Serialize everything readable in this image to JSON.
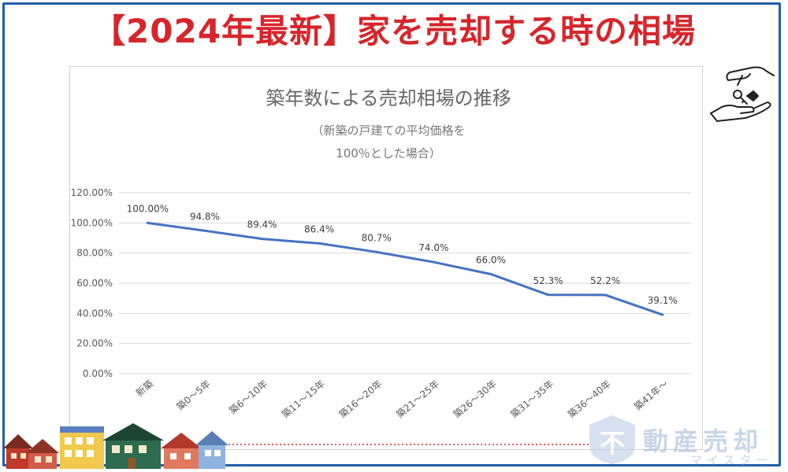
{
  "header": {
    "title": "【2024年最新】家を売却する時の相場"
  },
  "chart_data": {
    "type": "line",
    "title": "築年数による売却相場の推移",
    "subtitle_lines": [
      "（新築の戸建ての平均価格を",
      "100％とした場合）"
    ],
    "categories": [
      "新築",
      "築0～5年",
      "築6～10年",
      "築11～15年",
      "築16～20年",
      "築21～25年",
      "築26～30年",
      "築31～35年",
      "築36～40年",
      "築41年～"
    ],
    "series": [
      {
        "values": [
          100.0,
          94.8,
          89.4,
          86.4,
          80.7,
          74.0,
          66.0,
          52.3,
          52.2,
          39.1
        ],
        "data_labels": [
          "100.00%",
          "94.8%",
          "89.4%",
          "86.4%",
          "80.7%",
          "74.0%",
          "66.0%",
          "52.3%",
          "52.2%",
          "39.1%"
        ],
        "color": "#4472c4"
      }
    ],
    "ylim": [
      0,
      120
    ],
    "yticks": [
      0,
      20,
      40,
      60,
      80,
      100,
      120
    ],
    "ytick_labels": [
      "0.00%",
      "20.00%",
      "40.00%",
      "60.00%",
      "80.00%",
      "100.00%",
      "120.00%"
    ],
    "xlabel": "",
    "ylabel": "",
    "grid": true,
    "legend": "none"
  },
  "watermark": {
    "badge": "不",
    "brand": "動産売却",
    "sub": "マイスター"
  },
  "colors": {
    "accent": "#d6262b",
    "frame": "#1f5fa8",
    "line": "#4472c4",
    "grid": "#d9d9d9"
  },
  "icons": [
    "key-handover-icon",
    "house-row-illustration"
  ]
}
